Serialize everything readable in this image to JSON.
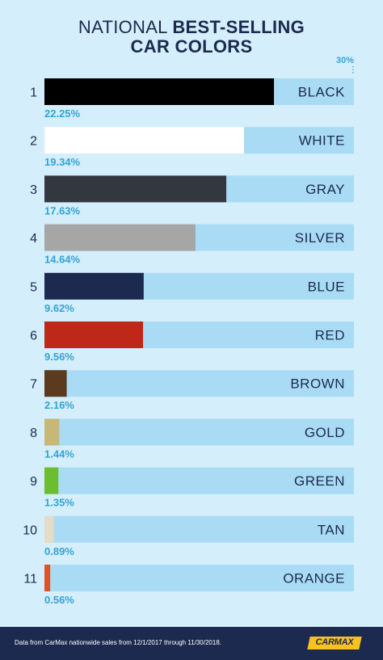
{
  "title": {
    "light": "NATIONAL",
    "bold_line1": "BEST-SELLING",
    "bold_line2": "CAR COLORS"
  },
  "chart_data": {
    "type": "bar",
    "orientation": "horizontal",
    "axis_max_label": "30%",
    "xlim": [
      0,
      30
    ],
    "categories": [
      "BLACK",
      "WHITE",
      "GRAY",
      "SILVER",
      "BLUE",
      "RED",
      "BROWN",
      "GOLD",
      "GREEN",
      "TAN",
      "ORANGE"
    ],
    "ranks": [
      "1",
      "2",
      "3",
      "4",
      "5",
      "6",
      "7",
      "8",
      "9",
      "10",
      "11"
    ],
    "values": [
      22.25,
      19.34,
      17.63,
      14.64,
      9.62,
      9.56,
      2.16,
      1.44,
      1.35,
      0.89,
      0.56
    ],
    "value_labels": [
      "22.25%",
      "19.34%",
      "17.63%",
      "14.64%",
      "9.62%",
      "9.56%",
      "2.16%",
      "1.44%",
      "1.35%",
      "0.89%",
      "0.56%"
    ],
    "colors": [
      "#000000",
      "#ffffff",
      "#333840",
      "#a6a6a6",
      "#1b2a4e",
      "#bf2819",
      "#5c3a20",
      "#c7b878",
      "#6cbe30",
      "#e4ddc6",
      "#e2502a"
    ],
    "track_color": "#a9dcf4",
    "label_color": "#1b2a4e",
    "value_color": "#33a3d6"
  },
  "footer": {
    "text": "Data from CarMax nationwide sales from 12/1/2017 through 11/30/2018.",
    "logo": "CARMAX"
  }
}
